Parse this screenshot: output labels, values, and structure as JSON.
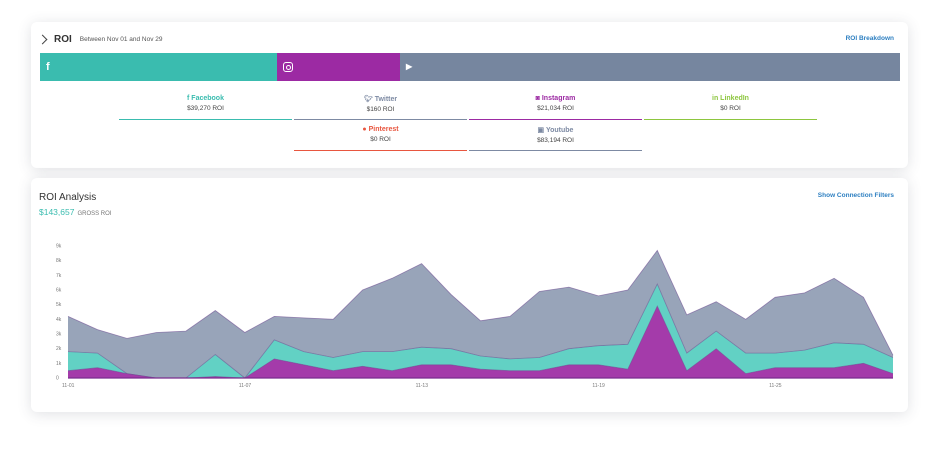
{
  "roi": {
    "title": "ROI",
    "date_range": "Between Nov 01 and Nov 29",
    "breakdown_link": "ROI Breakdown",
    "bar": {
      "facebook_glyph": "f",
      "youtube_glyph": "▶",
      "colors": {
        "facebook": "#3abcaf",
        "instagram": "#9c2aa3",
        "youtube": "#76869f"
      },
      "shares": {
        "facebook": 0.276,
        "instagram": 0.143,
        "youtube": 0.581
      }
    },
    "networks": [
      {
        "name": "f Facebook",
        "value": "$39,270 ROI",
        "color": "#3abcaf"
      },
      {
        "name": "Twitter",
        "value": "$160 ROI",
        "color": "#7d8aa3"
      },
      {
        "name": "Instagram",
        "value": "$21,034 ROI",
        "color": "#9c2aa3"
      },
      {
        "name": "in LinkedIn",
        "value": "$0 ROI",
        "color": "#8dc63f"
      },
      {
        "name": "Pinterest",
        "value": "$0 ROI",
        "color": "#e8563f"
      },
      {
        "name": "Youtube",
        "value": "$83,194 ROI",
        "color": "#7d8aa3"
      }
    ]
  },
  "analysis": {
    "title": "ROI Analysis",
    "gross_value": "$143,657",
    "gross_label": "GROSS ROI",
    "filters_link": "Show Connection Filters"
  },
  "chart_data": {
    "type": "area",
    "stacked": true,
    "ylim": [
      0,
      9000
    ],
    "y_ticks": [
      "0",
      "1k",
      "2k",
      "3k",
      "4k",
      "5k",
      "6k",
      "7k",
      "8k",
      "9k"
    ],
    "x_tick_labels": [
      {
        "index": 0,
        "label": "11-01"
      },
      {
        "index": 6,
        "label": "11-07"
      },
      {
        "index": 12,
        "label": "11-13"
      },
      {
        "index": 18,
        "label": "11-19"
      },
      {
        "index": 24,
        "label": "11-25"
      }
    ],
    "x": [
      "11-01",
      "11-02",
      "11-03",
      "11-04",
      "11-05",
      "11-06",
      "11-07",
      "11-08",
      "11-09",
      "11-10",
      "11-11",
      "11-12",
      "11-13",
      "11-14",
      "11-15",
      "11-16",
      "11-17",
      "11-18",
      "11-19",
      "11-20",
      "11-21",
      "11-22",
      "11-23",
      "11-24",
      "11-25",
      "11-26",
      "11-27",
      "11-28",
      "11-29"
    ],
    "series": [
      {
        "color": "#9c2aa3",
        "values": [
          500,
          700,
          300,
          0,
          0,
          100,
          0,
          1300,
          900,
          500,
          800,
          500,
          900,
          900,
          600,
          500,
          500,
          900,
          900,
          600,
          4900,
          500,
          2000,
          300,
          700,
          700,
          700,
          1000,
          300
        ]
      },
      {
        "color": "#55cdbf",
        "values": [
          1300,
          1000,
          0,
          0,
          0,
          1500,
          0,
          1300,
          900,
          900,
          1000,
          1300,
          1200,
          1100,
          900,
          800,
          900,
          1100,
          1300,
          1700,
          1500,
          1200,
          1200,
          1400,
          1000,
          1200,
          1700,
          1300,
          1100
        ]
      },
      {
        "color": "#8f9cb3",
        "values": [
          2400,
          1600,
          2400,
          3100,
          3200,
          3000,
          3100,
          1600,
          2300,
          2600,
          4200,
          5000,
          5700,
          3700,
          2400,
          2900,
          4500,
          4200,
          3400,
          3700,
          2300,
          2600,
          2000,
          2300,
          3800,
          3900,
          4400,
          3200,
          150
        ]
      }
    ]
  }
}
